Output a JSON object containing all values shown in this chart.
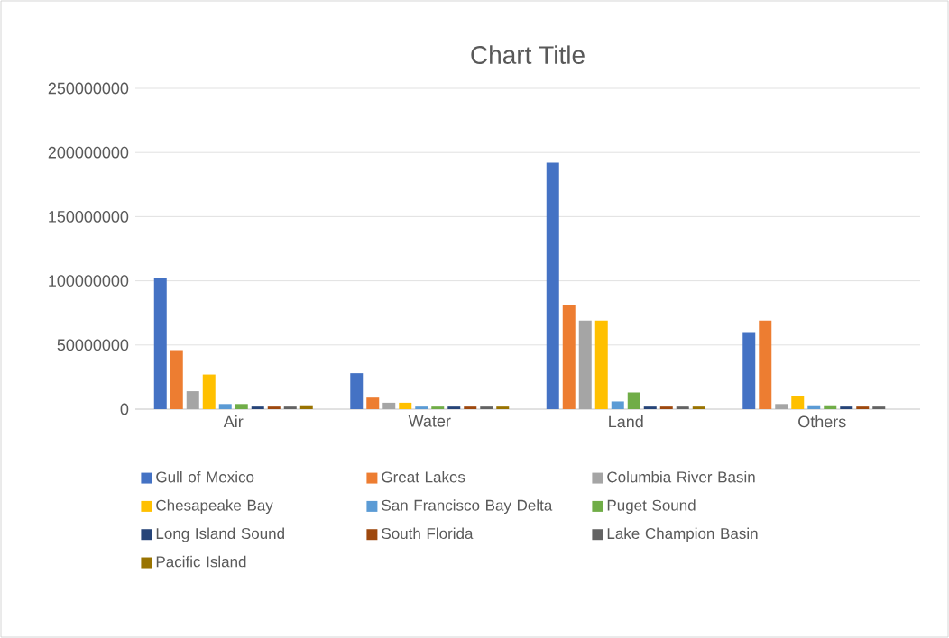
{
  "chart_data": {
    "type": "bar",
    "title": "Chart Title",
    "categories": [
      "Air",
      "Water",
      "Land",
      "Others"
    ],
    "series": [
      {
        "name": "Gull of Mexico",
        "color": "#4472c4",
        "values": [
          102000000,
          28000000,
          192000000,
          60000000
        ]
      },
      {
        "name": "Great Lakes",
        "color": "#ed7d31",
        "values": [
          46000000,
          9000000,
          81000000,
          69000000
        ]
      },
      {
        "name": "Columbia River Basin",
        "color": "#a5a5a5",
        "values": [
          14000000,
          5000000,
          69000000,
          4000000
        ]
      },
      {
        "name": "Chesapeake Bay",
        "color": "#ffc000",
        "values": [
          27000000,
          5000000,
          69000000,
          10000000
        ]
      },
      {
        "name": "San Francisco Bay Delta",
        "color": "#5b9bd5",
        "values": [
          4000000,
          2000000,
          6000000,
          3000000
        ]
      },
      {
        "name": "Puget Sound",
        "color": "#70ad47",
        "values": [
          4000000,
          2000000,
          13000000,
          3000000
        ]
      },
      {
        "name": "Long Island Sound",
        "color": "#264478",
        "values": [
          2000000,
          2000000,
          2000000,
          2000000
        ]
      },
      {
        "name": "South Florida",
        "color": "#9e480e",
        "values": [
          2000000,
          2000000,
          2000000,
          2000000
        ]
      },
      {
        "name": "Lake Champion Basin",
        "color": "#636363",
        "values": [
          2000000,
          2000000,
          2000000,
          2000000
        ]
      },
      {
        "name": "Pacific Island",
        "color": "#997300",
        "values": [
          3000000,
          2000000,
          2000000,
          null
        ]
      }
    ],
    "ylim": [
      0,
      250000000
    ],
    "yticks": [
      0,
      50000000,
      100000000,
      150000000,
      200000000,
      250000000
    ],
    "grid": "y",
    "legend": "bottom"
  }
}
